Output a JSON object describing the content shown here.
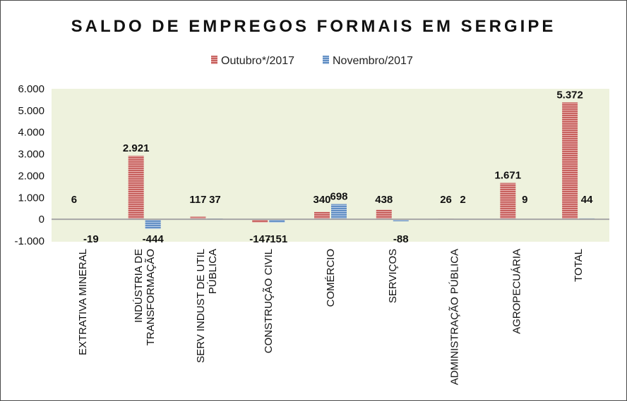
{
  "chart_data": {
    "type": "bar",
    "title": "SALDO DE EMPREGOS FORMAIS EM SERGIPE",
    "xlabel": "",
    "ylabel": "",
    "ylim": [
      -1000,
      6000
    ],
    "yticks": [
      6000,
      5000,
      4000,
      3000,
      2000,
      1000,
      0,
      -1000
    ],
    "ytick_labels": [
      "6.000",
      "5.000",
      "4.000",
      "3.000",
      "2.000",
      "1.000",
      "0",
      "-1.000"
    ],
    "legend_position": "top-center",
    "categories": [
      [
        "EXTRATIVA MINERAL"
      ],
      [
        "INDÚSTRIA DE",
        "TRANSFORMAÇÃO"
      ],
      [
        "SERV INDUST DE UTIL",
        "PÚBLICA"
      ],
      [
        "CONSTRUÇÃO CIVIL"
      ],
      [
        "COMÉRCIO"
      ],
      [
        "SERVIÇOS"
      ],
      [
        "ADMINISTRAÇÃO PÚBLICA"
      ],
      [
        "AGROPECUÁRIA"
      ],
      [
        "TOTAL"
      ]
    ],
    "series": [
      {
        "name": "Outubro*/2017",
        "color": "#c0504d",
        "values": [
          6,
          2921,
          117,
          -147,
          340,
          438,
          26,
          1671,
          5372
        ],
        "labels": [
          "6",
          "2.921",
          "117",
          "-147",
          "340",
          "438",
          "26",
          "1.671",
          "5.372"
        ]
      },
      {
        "name": "Novembro/2017",
        "color": "#4f81bd",
        "values": [
          -19,
          -444,
          37,
          -151,
          698,
          -88,
          2,
          9,
          44
        ],
        "labels": [
          "-19",
          "-444",
          "37",
          "-151",
          "698",
          "-88",
          "2",
          "9",
          "44"
        ]
      }
    ],
    "colors": {
      "plot_background": "#eef2dd",
      "zero_line": "#a6a6a6"
    }
  }
}
